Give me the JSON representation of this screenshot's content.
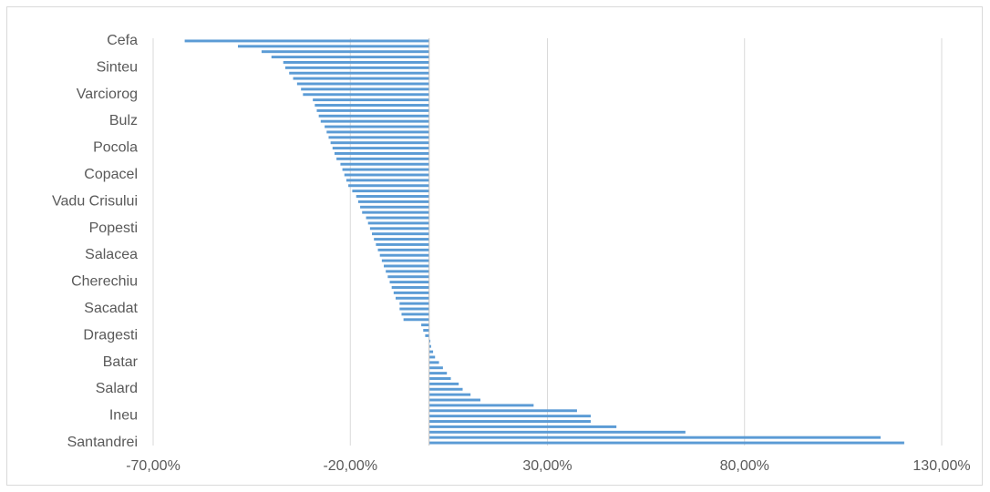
{
  "chart_data": {
    "type": "bar",
    "orientation": "horizontal",
    "title": "",
    "xlabel": "",
    "ylabel": "",
    "xlim": [
      -70,
      130
    ],
    "x_ticks": [
      -70,
      -20,
      30,
      80,
      130
    ],
    "x_tick_labels": [
      "-70,00%",
      "-20,00%",
      "30,00%",
      "80,00%",
      "130,00%"
    ],
    "grid": "vertical",
    "legend": "none",
    "bar_color": "#5b9bd5",
    "category_labels": [
      "Cefa",
      "Sinteu",
      "Varciorog",
      "Bulz",
      "Pocola",
      "Copacel",
      "Vadu Crisului",
      "Popesti",
      "Salacea",
      "Cherechiu",
      "Sacadat",
      "Dragesti",
      "Batar",
      "Salard",
      "Ineu",
      "Santandrei"
    ],
    "values": [
      -62.0,
      -48.5,
      -42.5,
      -40.0,
      -37.0,
      -36.5,
      -35.5,
      -34.5,
      -33.5,
      -32.5,
      -32.0,
      -29.5,
      -29.0,
      -28.5,
      -28.0,
      -27.5,
      -26.5,
      -26.0,
      -25.5,
      -25.0,
      -24.5,
      -24.0,
      -23.5,
      -22.5,
      -22.0,
      -21.5,
      -21.0,
      -20.5,
      -19.5,
      -18.5,
      -18.0,
      -17.5,
      -17.0,
      -16.0,
      -15.5,
      -15.0,
      -14.5,
      -14.0,
      -13.5,
      -13.0,
      -12.5,
      -12.0,
      -11.5,
      -11.0,
      -10.5,
      -10.0,
      -9.5,
      -9.0,
      -8.5,
      -7.5,
      -7.5,
      -7.0,
      -6.5,
      -2.0,
      -1.5,
      -1.0,
      0.3,
      0.5,
      1.0,
      1.5,
      2.5,
      3.5,
      4.5,
      5.5,
      7.5,
      8.5,
      10.5,
      13.0,
      26.5,
      37.5,
      41.0,
      41.0,
      47.5,
      65.0,
      114.5,
      120.5
    ]
  }
}
